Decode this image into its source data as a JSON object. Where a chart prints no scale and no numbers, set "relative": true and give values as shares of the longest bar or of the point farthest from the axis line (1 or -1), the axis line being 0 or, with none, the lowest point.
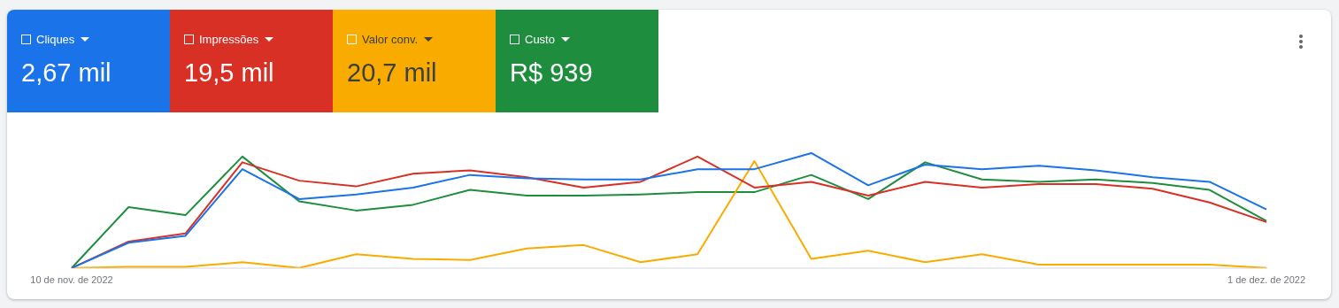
{
  "chart_data": {
    "type": "line",
    "relative": true,
    "legend": "top left",
    "marker": "none",
    "line_style": "solid",
    "categories": [
      "10 de nov. de 2022",
      null,
      null,
      null,
      null,
      null,
      null,
      null,
      null,
      null,
      null,
      null,
      null,
      null,
      null,
      null,
      null,
      null,
      null,
      null,
      null,
      "1 de dez. de 2022"
    ],
    "series": [
      {
        "name": "Cliques",
        "color": "#1a73e8",
        "values": [
          0,
          0.22,
          0.28,
          0.86,
          0.6,
          0.64,
          0.7,
          0.81,
          0.78,
          0.77,
          0.77,
          0.86,
          0.86,
          1,
          0.72,
          0.9,
          0.86,
          0.89,
          0.85,
          0.79,
          0.75,
          0.51
        ]
      },
      {
        "name": "Impressões",
        "color": "#d93025",
        "values": [
          0,
          0.23,
          0.3,
          0.92,
          0.76,
          0.71,
          0.82,
          0.85,
          0.79,
          0.7,
          0.75,
          0.97,
          0.7,
          0.75,
          0.63,
          0.75,
          0.7,
          0.73,
          0.73,
          0.69,
          0.57,
          0.4
        ]
      },
      {
        "name": "Valor conv.",
        "color": "#f9ab00",
        "values": [
          0,
          0.01,
          0.01,
          0.05,
          0,
          0.12,
          0.08,
          0.07,
          0.17,
          0.2,
          0.05,
          0.12,
          0.93,
          0.08,
          0.15,
          0.05,
          0.12,
          0.03,
          0.03,
          0.03,
          0.03,
          0
        ]
      },
      {
        "name": "Custo",
        "color": "#1e8e3e",
        "values": [
          0,
          0.53,
          0.46,
          0.97,
          0.58,
          0.5,
          0.55,
          0.68,
          0.63,
          0.63,
          0.64,
          0.66,
          0.66,
          0.81,
          0.6,
          0.92,
          0.77,
          0.75,
          0.77,
          0.74,
          0.68,
          0.41
        ]
      }
    ],
    "annotations": [
      "2,67 mil",
      "19,5 mil",
      "20,7 mil",
      "R$ 939"
    ]
  }
}
